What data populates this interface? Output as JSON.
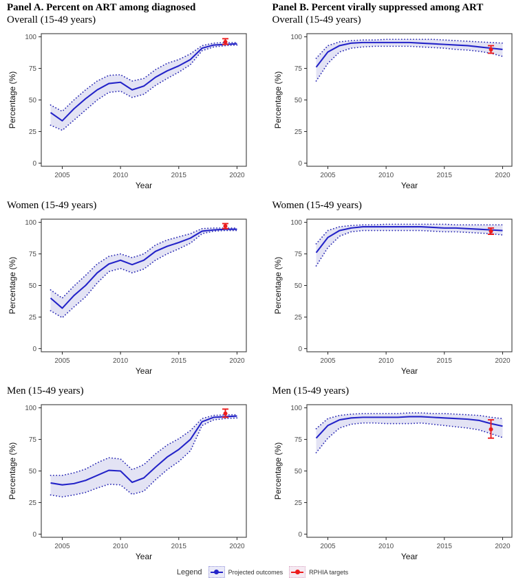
{
  "figure": {
    "panel_a_title": "Panel A. Percent on ART among diagnosed",
    "panel_b_title": "Panel B. Percent virally suppressed among ART",
    "colors": {
      "projection_line": "#2323c8",
      "bound_dots": "#2a2ab4",
      "band_fill": "#e3e3f4",
      "target_red": "#ec1c1c",
      "panel_border": "#4a4a4a",
      "tick_text": "#4d4d4d",
      "axis_title_text": "#111111"
    }
  },
  "legend": {
    "title": "Legend",
    "items": [
      {
        "label": "Projected outcomes",
        "accent": "#2323c8",
        "key_border": "#8c8cd9",
        "key_bg": "#eaeaf8"
      },
      {
        "label": "RPHIA targets",
        "accent": "#ec1c1c",
        "key_border": "#d9a0c0",
        "key_bg": "#f5eaf2"
      }
    ]
  },
  "chart_data": [
    {
      "type": "line",
      "panel": "A",
      "title": "Overall (15-49 years)",
      "xlabel": "Year",
      "ylabel": "Percentage (%)",
      "xlim": [
        2004,
        2020
      ],
      "ylim": [
        0,
        100
      ],
      "xticks": [
        2005,
        2010,
        2015,
        2020
      ],
      "yticks": [
        0,
        25,
        50,
        75,
        100
      ],
      "grid": false,
      "legend_position": "bottom-shared",
      "x": [
        2004,
        2005,
        2006,
        2007,
        2008,
        2009,
        2010,
        2011,
        2012,
        2013,
        2014,
        2015,
        2016,
        2017,
        2018,
        2019,
        2020
      ],
      "series": [
        {
          "name": "Projected outcomes (mean)",
          "values": [
            40,
            33.5,
            43,
            51,
            58,
            63,
            64,
            58,
            61,
            68,
            73,
            77,
            82,
            91,
            93.5,
            94,
            94.5
          ]
        },
        {
          "name": "Lower bound",
          "values": [
            30,
            26,
            34,
            42,
            50,
            56,
            57,
            52,
            54.5,
            61.5,
            67,
            72,
            78,
            89,
            92,
            93,
            93.5
          ]
        },
        {
          "name": "Upper bound",
          "values": [
            46,
            41,
            50,
            58,
            65,
            69.5,
            70,
            65,
            67,
            74,
            79,
            82,
            86.5,
            93,
            95,
            95.5,
            95.5
          ]
        }
      ],
      "target": {
        "name": "RPHIA targets",
        "x": 2019,
        "y": 96,
        "lo": 94,
        "hi": 98.5
      }
    },
    {
      "type": "line",
      "panel": "B",
      "title": "Overall (15-49 years)",
      "xlabel": "Year",
      "ylabel": "Percentage (%)",
      "xlim": [
        2004,
        2020
      ],
      "ylim": [
        0,
        100
      ],
      "xticks": [
        2005,
        2010,
        2015,
        2020
      ],
      "yticks": [
        0,
        25,
        50,
        75,
        100
      ],
      "grid": false,
      "legend_position": "bottom-shared",
      "x": [
        2004,
        2005,
        2006,
        2007,
        2008,
        2009,
        2010,
        2011,
        2012,
        2013,
        2014,
        2015,
        2016,
        2017,
        2018,
        2019,
        2020
      ],
      "series": [
        {
          "name": "Projected outcomes (mean)",
          "values": [
            76,
            88,
            93,
            95,
            95.5,
            95.5,
            95.5,
            95.5,
            95.5,
            95,
            94.5,
            94,
            93.5,
            93,
            92,
            91,
            90
          ]
        },
        {
          "name": "Lower bound",
          "values": [
            65,
            79,
            88,
            91,
            92,
            92.5,
            92.5,
            92.5,
            92.5,
            92,
            91.5,
            91,
            90,
            89.5,
            88.5,
            87,
            84.5
          ]
        },
        {
          "name": "Upper bound",
          "values": [
            83,
            93,
            96,
            97,
            97.5,
            97.5,
            98,
            98,
            98,
            98,
            98,
            97.5,
            97,
            96.5,
            96,
            95.5,
            95
          ]
        }
      ],
      "target": {
        "name": "RPHIA targets",
        "x": 2019,
        "y": 90,
        "lo": 87,
        "hi": 93
      }
    },
    {
      "type": "line",
      "panel": "A",
      "title": "Women (15-49 years)",
      "xlabel": "Year",
      "ylabel": "Percentage (%)",
      "xlim": [
        2004,
        2020
      ],
      "ylim": [
        0,
        100
      ],
      "xticks": [
        2005,
        2010,
        2015,
        2020
      ],
      "yticks": [
        0,
        25,
        50,
        75,
        100
      ],
      "grid": false,
      "legend_position": "bottom-shared",
      "x": [
        2004,
        2005,
        2006,
        2007,
        2008,
        2009,
        2010,
        2011,
        2012,
        2013,
        2014,
        2015,
        2016,
        2017,
        2018,
        2019,
        2020
      ],
      "series": [
        {
          "name": "Projected outcomes (mean)",
          "values": [
            40,
            32,
            42,
            50,
            60,
            67,
            70,
            66.5,
            70,
            77,
            81,
            84,
            87.5,
            93,
            94,
            94.5,
            94.5
          ]
        },
        {
          "name": "Lower bound",
          "values": [
            30,
            24.5,
            33,
            41,
            52,
            61,
            63.5,
            60,
            63,
            70,
            75,
            79,
            83.5,
            91,
            93,
            93.5,
            93.5
          ]
        },
        {
          "name": "Upper bound",
          "values": [
            46.5,
            40,
            49.5,
            58,
            67,
            73,
            75,
            72,
            75,
            82,
            86,
            88.5,
            91,
            95,
            95.5,
            95.5,
            95.5
          ]
        }
      ],
      "target": {
        "name": "RPHIA targets",
        "x": 2019,
        "y": 97,
        "lo": 95,
        "hi": 99
      }
    },
    {
      "type": "line",
      "panel": "B",
      "title": "Women (15-49 years)",
      "xlabel": "Year",
      "ylabel": "Percentage (%)",
      "xlim": [
        2004,
        2020
      ],
      "ylim": [
        0,
        100
      ],
      "xticks": [
        2005,
        2010,
        2015,
        2020
      ],
      "yticks": [
        0,
        25,
        50,
        75,
        100
      ],
      "grid": false,
      "legend_position": "bottom-shared",
      "x": [
        2004,
        2005,
        2006,
        2007,
        2008,
        2009,
        2010,
        2011,
        2012,
        2013,
        2014,
        2015,
        2016,
        2017,
        2018,
        2019,
        2020
      ],
      "series": [
        {
          "name": "Projected outcomes (mean)",
          "values": [
            76,
            88,
            93.5,
            95.5,
            96.5,
            96.5,
            96.5,
            96.5,
            96.5,
            96.5,
            96,
            95.5,
            95.5,
            95,
            94.5,
            94,
            93.5
          ]
        },
        {
          "name": "Lower bound",
          "values": [
            65.5,
            80,
            89,
            92.5,
            93.5,
            93.5,
            93.5,
            93.5,
            93.5,
            93.5,
            93,
            92.5,
            92.5,
            92,
            91.5,
            91,
            90
          ]
        },
        {
          "name": "Upper bound",
          "values": [
            83,
            93.5,
            96.5,
            97.5,
            98,
            98,
            98.5,
            98.5,
            98.5,
            98.5,
            98.5,
            98.5,
            98,
            98,
            98,
            98,
            98
          ]
        }
      ],
      "target": {
        "name": "RPHIA targets",
        "x": 2019,
        "y": 93,
        "lo": 90.5,
        "hi": 95.5
      }
    },
    {
      "type": "line",
      "panel": "A",
      "title": "Men (15-49 years)",
      "xlabel": "Year",
      "ylabel": "Percentage (%)",
      "xlim": [
        2004,
        2020
      ],
      "ylim": [
        0,
        100
      ],
      "xticks": [
        2005,
        2010,
        2015,
        2020
      ],
      "yticks": [
        0,
        25,
        50,
        75,
        100
      ],
      "grid": false,
      "legend_position": "bottom-shared",
      "x": [
        2004,
        2005,
        2006,
        2007,
        2008,
        2009,
        2010,
        2011,
        2012,
        2013,
        2014,
        2015,
        2016,
        2017,
        2018,
        2019,
        2020
      ],
      "series": [
        {
          "name": "Projected outcomes (mean)",
          "values": [
            40.5,
            39,
            40,
            42.5,
            46.5,
            50.5,
            50,
            41,
            44.5,
            53,
            61,
            67,
            75,
            89,
            92.5,
            93,
            93.5
          ]
        },
        {
          "name": "Lower bound",
          "values": [
            31,
            29.5,
            31,
            33,
            36.5,
            39.5,
            39,
            31.5,
            34,
            43,
            51,
            57.5,
            66,
            86,
            90.5,
            91.5,
            92
          ]
        },
        {
          "name": "Upper bound",
          "values": [
            46.5,
            46.5,
            48.5,
            51.5,
            56.5,
            60.5,
            59.5,
            51,
            55,
            63.5,
            70.5,
            75.5,
            82,
            91.5,
            94,
            94.5,
            94.5
          ]
        }
      ],
      "target": {
        "name": "RPHIA targets",
        "x": 2019,
        "y": 95.5,
        "lo": 92.5,
        "hi": 99
      }
    },
    {
      "type": "line",
      "panel": "B",
      "title": "Men (15-49 years)",
      "xlabel": "Year",
      "ylabel": "Percentage (%)",
      "xlim": [
        2004,
        2020
      ],
      "ylim": [
        0,
        100
      ],
      "xticks": [
        2005,
        2010,
        2015,
        2020
      ],
      "yticks": [
        0,
        25,
        50,
        75,
        100
      ],
      "grid": false,
      "legend_position": "bottom-shared",
      "x": [
        2004,
        2005,
        2006,
        2007,
        2008,
        2009,
        2010,
        2011,
        2012,
        2013,
        2014,
        2015,
        2016,
        2017,
        2018,
        2019,
        2020
      ],
      "series": [
        {
          "name": "Projected outcomes (mean)",
          "values": [
            76,
            86,
            90.5,
            92,
            92.5,
            92.5,
            92.5,
            92.5,
            93,
            93,
            92.5,
            92,
            91.5,
            91,
            90,
            87.5,
            85.5
          ]
        },
        {
          "name": "Lower bound",
          "values": [
            64.5,
            76,
            84,
            87,
            88,
            88,
            87.5,
            87.5,
            87.5,
            88,
            87,
            86,
            85,
            84,
            82.5,
            79.5,
            76.5
          ]
        },
        {
          "name": "Upper bound",
          "values": [
            83.5,
            91.5,
            94,
            95,
            95.5,
            95.5,
            95.5,
            95.5,
            96,
            96,
            95.5,
            95.5,
            95,
            94.5,
            94,
            92.5,
            91.5
          ]
        }
      ],
      "target": {
        "name": "RPHIA targets",
        "x": 2019,
        "y": 83,
        "lo": 76,
        "hi": 90.5
      }
    }
  ]
}
